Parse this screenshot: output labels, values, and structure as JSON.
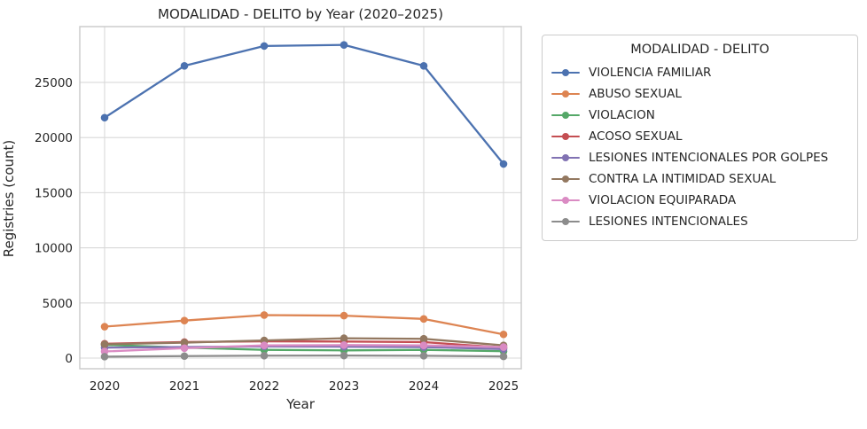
{
  "title": "MODALIDAD - DELITO by Year (2020–2025)",
  "axes": {
    "xlabel": "Year",
    "ylabel": "Registries (count)",
    "x_tick_labels": [
      "2020",
      "2021",
      "2022",
      "2023",
      "2024",
      "2025"
    ],
    "y_tick_labels": [
      "0",
      "5000",
      "10000",
      "15000",
      "20000",
      "25000"
    ]
  },
  "legend": {
    "title": "MODALIDAD - DELITO",
    "position": "upper right, outside plot"
  },
  "chart_data": {
    "type": "line",
    "title": "MODALIDAD - DELITO by Year (2020–2025)",
    "xlabel": "Year",
    "ylabel": "Registries (count)",
    "categories": [
      2020,
      2021,
      2022,
      2023,
      2024,
      2025
    ],
    "y_ticks": [
      0,
      5000,
      10000,
      15000,
      20000,
      25000
    ],
    "ylim": [
      -1000,
      30000
    ],
    "grid": true,
    "marker": "circle",
    "series": [
      {
        "name": "VIOLENCIA FAMILIAR",
        "color": "#4C72B0",
        "values": [
          21800,
          26500,
          28300,
          28400,
          26500,
          17600
        ]
      },
      {
        "name": "ABUSO SEXUAL",
        "color": "#DD8452",
        "values": [
          2850,
          3400,
          3900,
          3850,
          3550,
          2150
        ]
      },
      {
        "name": "VIOLACION",
        "color": "#55A868",
        "values": [
          1200,
          950,
          750,
          700,
          750,
          620
        ]
      },
      {
        "name": "ACOSO SEXUAL",
        "color": "#C44E52",
        "values": [
          1300,
          1450,
          1520,
          1500,
          1450,
          950
        ]
      },
      {
        "name": "LESIONES INTENCIONALES POR GOLPES",
        "color": "#8172B3",
        "values": [
          950,
          1000,
          1060,
          1030,
          1000,
          820
        ]
      },
      {
        "name": "CONTRA LA INTIMIDAD SEXUAL",
        "color": "#937860",
        "values": [
          1250,
          1400,
          1600,
          1800,
          1750,
          1150
        ]
      },
      {
        "name": "VIOLACION EQUIPARADA",
        "color": "#DA8BC3",
        "values": [
          600,
          900,
          1150,
          1180,
          1150,
          1000
        ]
      },
      {
        "name": "LESIONES INTENCIONALES",
        "color": "#8C8C8C",
        "values": [
          130,
          180,
          220,
          230,
          210,
          150
        ]
      }
    ]
  },
  "style": {
    "grid_color": "#d9d9d9",
    "spine_color": "#c9c9c9",
    "text_color": "#262626",
    "background": "#ffffff"
  }
}
